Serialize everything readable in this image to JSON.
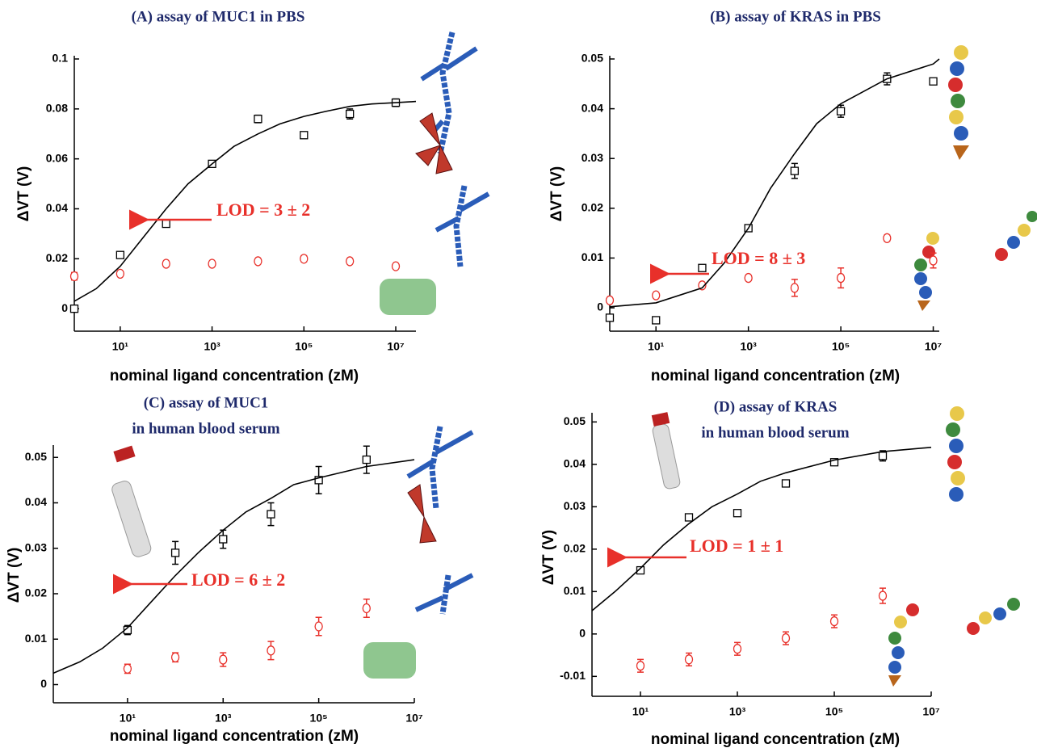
{
  "chart_data": [
    {
      "type": "scatter",
      "title": [
        "(A) assay of MUC1 in PBS"
      ],
      "xlabel": "nominal ligand concentration (zM)",
      "ylabel": "ΔVT (V)",
      "xscale": "log",
      "xlim": [
        1,
        27500000
      ],
      "ylim": [
        -0.009,
        0.1
      ],
      "xticks": [
        {
          "value": 10,
          "label": "10¹"
        },
        {
          "value": 1000,
          "label": "10³"
        },
        {
          "value": 100000,
          "label": "10⁵"
        },
        {
          "value": 10000000,
          "label": "10⁷"
        }
      ],
      "yticks": [
        0,
        0.02,
        0.04,
        0.06,
        0.08,
        0.1
      ],
      "annotation": {
        "text": "LOD = 3 ± 2",
        "color": "#e8302a"
      },
      "series": [
        {
          "style": "square",
          "color": "#000000",
          "x": [
            1,
            10,
            100,
            1000,
            10000,
            100000,
            1000000,
            10000000
          ],
          "values": [
            0,
            0.0215,
            0.034,
            0.058,
            0.076,
            0.0695,
            0.078,
            0.0825
          ],
          "errors": [
            0.001,
            0.001,
            0.001,
            0.001,
            0.0015,
            0.001,
            0.002,
            0.0015
          ]
        },
        {
          "style": "circle",
          "color": "#e8302a",
          "x": [
            1,
            10,
            100,
            1000,
            10000,
            100000,
            1000000,
            10000000
          ],
          "values": [
            0.013,
            0.014,
            0.018,
            0.018,
            0.019,
            0.02,
            0.019,
            0.017
          ],
          "errors": [
            0.0015,
            0.001,
            0.001,
            0.001,
            0.001,
            0.0012,
            0.001,
            0.001
          ]
        },
        {
          "style": "line",
          "color": "#000000",
          "x": [
            1,
            3,
            10,
            30,
            100,
            300,
            1000,
            3000,
            10000,
            30000,
            100000,
            300000,
            1000000,
            3000000,
            10000000,
            27500000
          ],
          "values": [
            0.003,
            0.008,
            0.017,
            0.028,
            0.04,
            0.05,
            0.058,
            0.065,
            0.07,
            0.074,
            0.077,
            0.079,
            0.081,
            0.082,
            0.0825,
            0.083
          ]
        }
      ]
    },
    {
      "type": "scatter",
      "title": [
        "(B) assay of KRAS in PBS"
      ],
      "xlabel": "nominal ligand concentration (zM)",
      "ylabel": "ΔVT (V)",
      "xscale": "log",
      "xlim": [
        1,
        13500000
      ],
      "ylim": [
        -0.0047,
        0.05
      ],
      "xticks": [
        {
          "value": 10,
          "label": "10¹"
        },
        {
          "value": 1000,
          "label": "10³"
        },
        {
          "value": 100000,
          "label": "10⁵"
        },
        {
          "value": 10000000,
          "label": "10⁷"
        }
      ],
      "yticks": [
        0,
        0.01,
        0.02,
        0.03,
        0.04,
        0.05
      ],
      "annotation": {
        "text": "LOD = 8 ± 3",
        "color": "#e8302a"
      },
      "series": [
        {
          "style": "square",
          "color": "#000000",
          "x": [
            1,
            10,
            100,
            1000,
            10000,
            100000,
            1000000,
            10000000
          ],
          "values": [
            -0.002,
            -0.0025,
            0.008,
            0.016,
            0.0275,
            0.0395,
            0.046,
            0.0455
          ],
          "errors": [
            0.0006,
            0.0006,
            0.0006,
            0.0006,
            0.0015,
            0.0012,
            0.0012,
            0.0006
          ]
        },
        {
          "style": "circle",
          "color": "#e8302a",
          "x": [
            1,
            10,
            100,
            1000,
            10000,
            100000,
            1000000,
            10000000
          ],
          "values": [
            0.0015,
            0.0025,
            0.0045,
            0.006,
            0.004,
            0.006,
            0.014,
            0.0095
          ],
          "errors": [
            0.0005,
            0.0005,
            0.0005,
            0.0005,
            0.0017,
            0.002,
            0.0006,
            0.0015
          ]
        },
        {
          "style": "line",
          "color": "#000000",
          "x": [
            1,
            10,
            100,
            300,
            1000,
            3000,
            10000,
            30000,
            100000,
            1000000,
            10000000,
            13500000
          ],
          "values": [
            0.0002,
            0.001,
            0.004,
            0.009,
            0.016,
            0.024,
            0.031,
            0.037,
            0.041,
            0.046,
            0.049,
            0.05
          ]
        }
      ]
    },
    {
      "type": "scatter",
      "title": [
        "(C) assay of MUC1",
        "in human blood serum"
      ],
      "xlabel": "nominal ligand concentration (zM)",
      "ylabel": "ΔVT (V)",
      "xscale": "log",
      "xlim": [
        0.28,
        10000000
      ],
      "ylim": [
        -0.004,
        0.052
      ],
      "xticks": [
        {
          "value": 10,
          "label": "10¹"
        },
        {
          "value": 1000,
          "label": "10³"
        },
        {
          "value": 100000,
          "label": "10⁵"
        },
        {
          "value": 10000000,
          "label": "10⁷"
        }
      ],
      "yticks": [
        0,
        0.01,
        0.02,
        0.03,
        0.04,
        0.05
      ],
      "annotation": {
        "text": "LOD = 6 ± 2",
        "color": "#e8302a"
      },
      "series": [
        {
          "style": "square",
          "color": "#000000",
          "x": [
            10,
            100,
            1000,
            10000,
            100000,
            1000000
          ],
          "values": [
            0.012,
            0.029,
            0.032,
            0.0375,
            0.045,
            0.0495
          ],
          "errors": [
            0.001,
            0.0025,
            0.002,
            0.0025,
            0.003,
            0.003
          ]
        },
        {
          "style": "circle",
          "color": "#e8302a",
          "x": [
            10,
            100,
            1000,
            10000,
            100000,
            1000000
          ],
          "values": [
            0.0035,
            0.006,
            0.0055,
            0.0075,
            0.0128,
            0.0168
          ],
          "errors": [
            0.001,
            0.001,
            0.0015,
            0.002,
            0.002,
            0.002
          ]
        },
        {
          "style": "line",
          "color": "#000000",
          "x": [
            0.28,
            1,
            3,
            10,
            30,
            100,
            300,
            1000,
            3000,
            10000,
            30000,
            100000,
            1000000,
            10000000
          ],
          "values": [
            0.0025,
            0.005,
            0.008,
            0.0125,
            0.018,
            0.024,
            0.029,
            0.034,
            0.038,
            0.041,
            0.044,
            0.0455,
            0.048,
            0.0495
          ]
        }
      ]
    },
    {
      "type": "scatter",
      "title": [
        "(D) assay of KRAS",
        "in human blood serum"
      ],
      "xlabel": "nominal ligand concentration (zM)",
      "ylabel": "ΔVT (V)",
      "xscale": "log",
      "xlim": [
        1,
        10000000
      ],
      "ylim": [
        -0.0147,
        0.0514
      ],
      "xticks": [
        {
          "value": 10,
          "label": "10¹"
        },
        {
          "value": 1000,
          "label": "10³"
        },
        {
          "value": 100000,
          "label": "10⁵"
        },
        {
          "value": 10000000,
          "label": "10⁷"
        }
      ],
      "yticks": [
        -0.01,
        0,
        0.01,
        0.02,
        0.03,
        0.04,
        0.05
      ],
      "annotation": {
        "text": "LOD = 1 ± 1",
        "color": "#e8302a"
      },
      "series": [
        {
          "style": "square",
          "color": "#000000",
          "x": [
            10,
            100,
            1000,
            10000,
            100000,
            1000000
          ],
          "values": [
            0.015,
            0.0275,
            0.0285,
            0.0355,
            0.0405,
            0.042
          ],
          "errors": [
            0.0007,
            0.0007,
            0.0007,
            0.0007,
            0.0007,
            0.0012
          ]
        },
        {
          "style": "circle",
          "color": "#e8302a",
          "x": [
            10,
            100,
            1000,
            10000,
            100000,
            1000000
          ],
          "values": [
            -0.0075,
            -0.006,
            -0.0035,
            -0.001,
            0.003,
            0.009
          ],
          "errors": [
            0.0015,
            0.0015,
            0.0015,
            0.0015,
            0.0015,
            0.0018
          ]
        },
        {
          "style": "line",
          "color": "#000000",
          "x": [
            1,
            3,
            10,
            30,
            100,
            300,
            1000,
            3000,
            10000,
            100000,
            1000000,
            10000000
          ],
          "values": [
            0.0055,
            0.01,
            0.0155,
            0.021,
            0.026,
            0.03,
            0.033,
            0.036,
            0.038,
            0.041,
            0.043,
            0.044
          ]
        }
      ]
    }
  ]
}
